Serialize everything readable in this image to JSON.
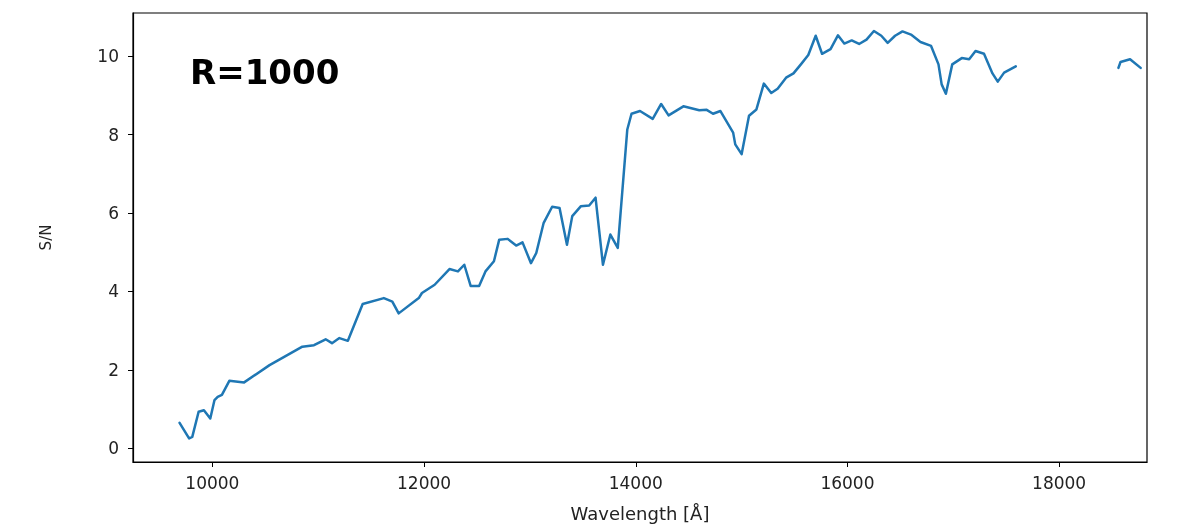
{
  "chart_data": {
    "type": "line",
    "xlabel": "Wavelength [Å]",
    "ylabel": "S/N",
    "annotations": [
      "R=1000"
    ],
    "xlim": [
      9250,
      18830
    ],
    "xticks": [
      10000,
      12000,
      14000,
      16000,
      18000
    ],
    "ylim": [
      -0.35,
      11.1
    ],
    "yticks": [
      0,
      2,
      4,
      6,
      8,
      10
    ],
    "grid": false,
    "marker": "none",
    "line_style": "solid",
    "series": [
      {
        "color": "#1f77b4",
        "x": [
          9690,
          9780,
          9810,
          9870,
          9920,
          9980,
          10020,
          10050,
          10090,
          10160,
          10300,
          10540,
          10850,
          10960,
          11070,
          11130,
          11200,
          11280,
          11420,
          11620,
          11700,
          11760,
          11950,
          11980,
          12100,
          12240,
          12320,
          12380,
          12440,
          12520,
          12580,
          12660,
          12710,
          12790,
          12870,
          12930,
          13010,
          13060,
          13130,
          13210,
          13280,
          13350,
          13400,
          13480,
          13560,
          13620,
          13690,
          13760,
          13830,
          13920,
          13960,
          14040,
          14160,
          14240,
          14310,
          14450,
          14600,
          14670,
          14730,
          14800,
          14920,
          14940,
          15000,
          15070,
          15140,
          15210,
          15280,
          15340,
          15420,
          15490,
          15560,
          15630,
          15700,
          15760,
          15840,
          15910,
          15970,
          16040,
          16110,
          16180,
          16250,
          16320,
          16380,
          16450,
          16520,
          16600,
          16690,
          16790,
          16860,
          16890,
          16930,
          16990,
          17080,
          17150,
          17210,
          17290,
          17370,
          17420,
          17480,
          17590,
          18080,
          18560,
          18580,
          18670,
          18770
        ],
        "values": [
          0.65,
          0.25,
          0.29,
          0.93,
          0.97,
          0.76,
          1.23,
          1.31,
          1.36,
          1.72,
          1.68,
          2.12,
          2.59,
          2.63,
          2.78,
          2.68,
          2.81,
          2.74,
          3.68,
          3.83,
          3.74,
          3.44,
          3.83,
          3.96,
          4.17,
          4.57,
          4.51,
          4.68,
          4.14,
          4.14,
          4.51,
          4.77,
          5.32,
          5.34,
          5.17,
          5.25,
          4.72,
          4.98,
          5.75,
          6.16,
          6.13,
          5.19,
          5.92,
          6.17,
          6.19,
          6.39,
          4.68,
          5.45,
          5.11,
          8.13,
          8.53,
          8.6,
          8.4,
          8.78,
          8.49,
          8.72,
          8.62,
          8.63,
          8.53,
          8.6,
          8.05,
          7.75,
          7.5,
          8.48,
          8.64,
          9.3,
          9.06,
          9.17,
          9.45,
          9.56,
          9.79,
          10.03,
          10.52,
          10.06,
          10.18,
          10.53,
          10.32,
          10.4,
          10.31,
          10.42,
          10.64,
          10.52,
          10.34,
          10.52,
          10.63,
          10.55,
          10.36,
          10.26,
          9.79,
          9.28,
          9.04,
          9.79,
          9.95,
          9.92,
          10.13,
          10.06,
          9.56,
          9.35,
          9.58,
          9.74,
          null,
          9.7,
          9.85,
          9.92,
          9.7
        ]
      }
    ]
  }
}
